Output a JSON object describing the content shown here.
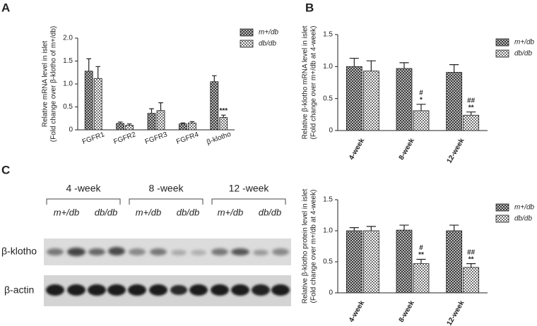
{
  "panels": [
    "A",
    "B",
    "C"
  ],
  "blot": {
    "groups": [
      "4 -week",
      "8 -week",
      "12 -week"
    ],
    "lanes": [
      "m+/db",
      "db/db",
      "m+/db",
      "db/db",
      "m+/db",
      "db/db"
    ],
    "rows": [
      "β-klotho",
      "β-actin"
    ]
  },
  "chart_data": [
    {
      "type": "bar",
      "y_label": [
        "Relative mRNA level in islet",
        "(Fold change over β-klotho of m+/db)"
      ],
      "categories": [
        "FGFR1",
        "FGFR2",
        "FGFR3",
        "FGFR4",
        "β-klotho"
      ],
      "series": [
        {
          "name": "m+/db",
          "color": "#3a3a3a",
          "values": [
            1.28,
            0.14,
            0.36,
            0.13,
            1.05
          ],
          "errors": [
            0.27,
            0.03,
            0.1,
            0.02,
            0.13
          ],
          "annotations": [
            null,
            null,
            null,
            null,
            null
          ]
        },
        {
          "name": "db/db",
          "color": "#707070",
          "values": [
            1.12,
            0.1,
            0.42,
            0.15,
            0.27
          ],
          "errors": [
            0.26,
            0.03,
            0.17,
            0.03,
            0.05
          ],
          "annotations": [
            null,
            null,
            null,
            null,
            [
              "***"
            ]
          ]
        }
      ],
      "ylim": [
        0,
        2
      ],
      "yticks": [
        0,
        0.5,
        {
          "value": 1,
          "label": "1.0"
        },
        1.5,
        {
          "value": 2,
          "label": "2.0"
        }
      ],
      "legend": "right"
    },
    {
      "type": "bar",
      "y_label": [
        "Relative β-klotho mRNA level in islet",
        "(Fold change over m+/db at 4-week)"
      ],
      "categories": [
        "4-week",
        "8-week",
        "12-week"
      ],
      "series": [
        {
          "name": "m+/db",
          "color": "#3a3a3a",
          "values": [
            1.0,
            0.97,
            0.91
          ],
          "errors": [
            0.13,
            0.09,
            0.12
          ],
          "annotations": [
            null,
            null,
            null
          ]
        },
        {
          "name": "db/db",
          "color": "#707070",
          "values": [
            0.93,
            0.31,
            0.24
          ],
          "errors": [
            0.16,
            0.1,
            0.05
          ],
          "annotations": [
            null,
            [
              "#",
              "*"
            ],
            [
              "##",
              "**"
            ]
          ]
        }
      ],
      "ylim": [
        0,
        1.5
      ],
      "yticks": [
        0,
        0.5,
        {
          "value": 1,
          "label": "1.0"
        },
        1.5
      ],
      "legend": "right"
    },
    {
      "type": "bar",
      "y_label": [
        "Relative β-klotho protein level in islet",
        "(Fold change over m+/db at 4-week)"
      ],
      "categories": [
        "4-week",
        "8-week",
        "12-week"
      ],
      "series": [
        {
          "name": "m+/db",
          "color": "#3a3a3a",
          "values": [
            1.0,
            1.01,
            1.0
          ],
          "errors": [
            0.05,
            0.08,
            0.09
          ],
          "annotations": [
            null,
            null,
            null
          ]
        },
        {
          "name": "db/db",
          "color": "#707070",
          "values": [
            1.0,
            0.47,
            0.41
          ],
          "errors": [
            0.07,
            0.07,
            0.06
          ],
          "annotations": [
            null,
            [
              "#",
              "**"
            ],
            [
              "##",
              "**"
            ]
          ]
        }
      ],
      "ylim": [
        0,
        1.5
      ],
      "yticks": [
        0,
        0.5,
        {
          "value": 1,
          "label": "1.0"
        },
        1.5
      ],
      "legend": "right"
    }
  ]
}
